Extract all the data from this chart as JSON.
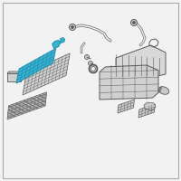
{
  "bg": "#f2f2f2",
  "lc": "#7a7a7a",
  "hc": "#3ab0d0",
  "he": "#1a90b0",
  "pc": "#c8c8c8",
  "pe": "#5a5a5a",
  "white": "#ffffff",
  "fig_w": 2.0,
  "fig_h": 2.0,
  "dpi": 100
}
